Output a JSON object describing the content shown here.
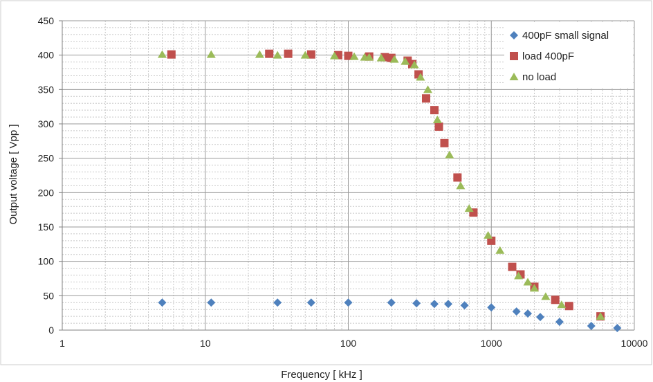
{
  "chart_data": {
    "type": "scatter",
    "x_scale": "log",
    "xlim": [
      1,
      10000
    ],
    "ylim": [
      0,
      450
    ],
    "x_ticks": [
      1,
      10,
      100,
      1000,
      10000
    ],
    "x_tick_labels": [
      "1",
      "10",
      "100",
      "1000",
      "10000"
    ],
    "y_ticks": [
      0,
      50,
      100,
      150,
      200,
      250,
      300,
      350,
      400,
      450
    ],
    "y_tick_labels": [
      "0",
      "50",
      "100",
      "150",
      "200",
      "250",
      "300",
      "350",
      "400",
      "450"
    ],
    "xlabel": "Frequency [ kHz ]",
    "ylabel": "Output voltage [ Vpp ]",
    "grid": true,
    "legend_position": "top-right",
    "series": [
      {
        "name": "400pF small signal",
        "marker": "diamond",
        "color": "#4f81bd",
        "x": [
          5,
          11,
          32,
          55,
          100,
          200,
          300,
          400,
          500,
          650,
          1000,
          1500,
          1800,
          2200,
          3000,
          5000,
          7600
        ],
        "y": [
          40,
          40,
          40,
          40,
          40,
          40,
          39,
          38,
          38,
          36,
          33,
          27,
          24,
          19,
          12,
          6,
          3
        ]
      },
      {
        "name": "load 400pF",
        "marker": "square",
        "color": "#c0504d",
        "x": [
          5.8,
          28,
          38,
          55,
          85,
          100,
          140,
          180,
          200,
          260,
          280,
          310,
          350,
          400,
          430,
          470,
          580,
          750,
          1000,
          1400,
          1600,
          2000,
          2800,
          3500,
          5800
        ],
        "y": [
          401,
          402,
          402,
          401,
          400,
          399,
          398,
          397,
          396,
          392,
          387,
          372,
          337,
          320,
          296,
          272,
          222,
          171,
          130,
          92,
          81,
          63,
          44,
          35,
          20
        ]
      },
      {
        "name": "no load",
        "marker": "triangle",
        "color": "#9bbb59",
        "x": [
          5,
          11,
          24,
          32,
          50,
          80,
          110,
          130,
          140,
          170,
          210,
          250,
          290,
          320,
          360,
          420,
          510,
          610,
          700,
          950,
          1150,
          1550,
          1800,
          2000,
          2400,
          3100,
          5800
        ],
        "y": [
          401,
          401,
          401,
          400,
          400,
          399,
          398,
          397,
          397,
          396,
          394,
          391,
          386,
          368,
          350,
          306,
          255,
          210,
          177,
          138,
          116,
          79,
          70,
          61,
          49,
          37,
          20
        ]
      }
    ]
  }
}
